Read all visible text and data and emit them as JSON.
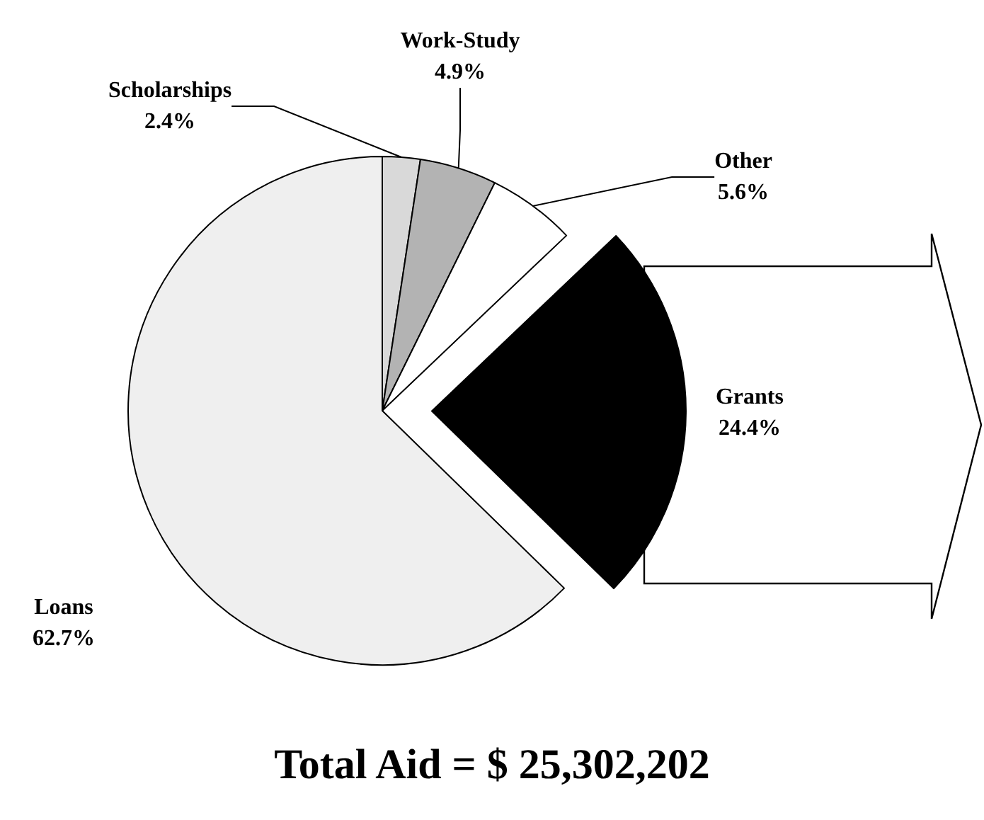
{
  "chart_data": {
    "type": "pie",
    "title": "Total Aid = $ 25,302,202",
    "categories": [
      "Scholarships",
      "Work-Study",
      "Other",
      "Grants",
      "Loans"
    ],
    "values": [
      2.4,
      4.9,
      5.6,
      24.4,
      62.7
    ],
    "value_labels": [
      "2.4%",
      "4.9%",
      "5.6%",
      "24.4%",
      "62.7%"
    ],
    "colors": [
      "#d9d9d9",
      "#b3b3b3",
      "#ffffff",
      "#000000",
      "#efefef"
    ],
    "legend": false
  }
}
